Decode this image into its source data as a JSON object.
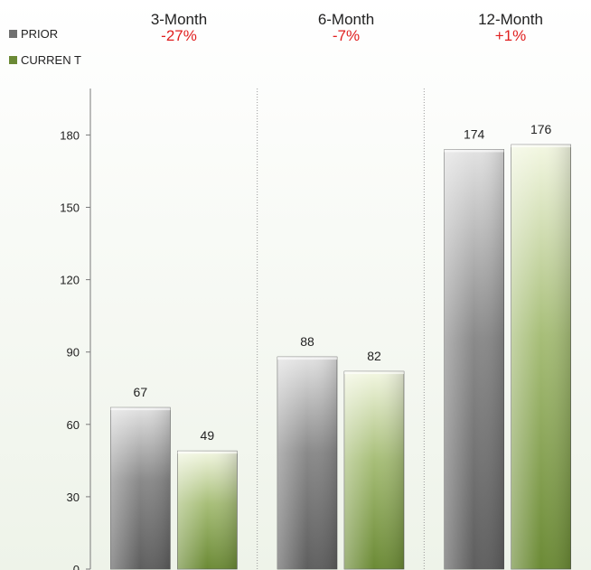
{
  "legend": [
    {
      "label": "PRIOR",
      "color": "#707070"
    },
    {
      "label": "CURREN T",
      "color": "#6b8a35"
    }
  ],
  "periods": [
    {
      "name": "3-Month",
      "change": "-27%"
    },
    {
      "name": "6-Month",
      "change": "-7%"
    },
    {
      "name": "12-Month",
      "change": "+1%"
    }
  ],
  "chart_data": {
    "type": "bar",
    "categories": [
      "3-Month",
      "6-Month",
      "12-Month"
    ],
    "series": [
      {
        "name": "PRIOR",
        "values": [
          67,
          88,
          174
        ]
      },
      {
        "name": "CURREN T",
        "values": [
          49,
          82,
          176
        ]
      }
    ],
    "ylim": [
      0,
      195
    ],
    "yticks": [
      0,
      30,
      60,
      90,
      120,
      150,
      180
    ],
    "title": "",
    "xlabel": "",
    "ylabel": "",
    "legend_position": "top-left",
    "grid": false
  }
}
